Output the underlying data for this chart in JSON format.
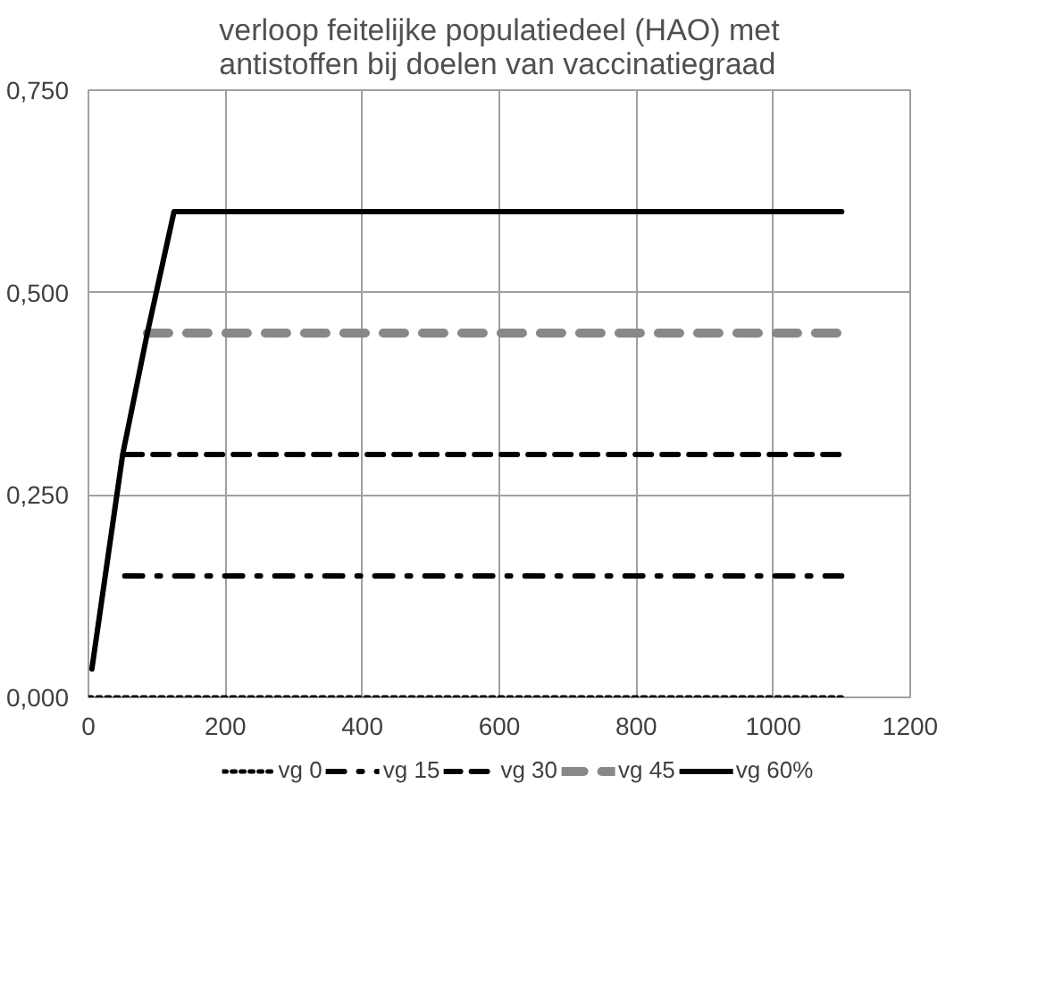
{
  "chart_data": {
    "type": "line",
    "title": "verloop feitelijke populatiedeel (HAO) met antistoffen bij doelen van vaccinatiegraad",
    "xlim": [
      0,
      1200
    ],
    "xticks": [
      0,
      200,
      400,
      600,
      800,
      1000,
      1200
    ],
    "ylim": [
      0,
      0.75
    ],
    "yticks": [
      {
        "value": 0,
        "label": "0,000"
      },
      {
        "value": 0.25,
        "label": "0,250"
      },
      {
        "value": 0.5,
        "label": "0,500"
      },
      {
        "value": 0.75,
        "label": "0,750"
      }
    ],
    "grid": true,
    "legend": "bottom",
    "series": [
      {
        "name": "vg 0",
        "color": "#000000",
        "line_style": "dotted",
        "x": [
          0,
          1100
        ],
        "values": [
          0,
          0
        ]
      },
      {
        "name": "vg 15",
        "color": "#000000",
        "line_style": "dashdot",
        "x": [
          53,
          1100
        ],
        "values": [
          0.15,
          0.15
        ]
      },
      {
        "name": "vg 30",
        "color": "#000000",
        "line_style": "dashed",
        "x": [
          55,
          1100
        ],
        "values": [
          0.3,
          0.3
        ]
      },
      {
        "name": "vg 45",
        "color": "#888888",
        "line_style": "longdash",
        "x": [
          86,
          1100
        ],
        "values": [
          0.45,
          0.45
        ]
      },
      {
        "name": "vg 60%",
        "color": "#000000",
        "line_style": "solid",
        "x": [
          5,
          50,
          86,
          125,
          1100
        ],
        "values": [
          0.035,
          0.3,
          0.45,
          0.6,
          0.6
        ]
      }
    ]
  }
}
